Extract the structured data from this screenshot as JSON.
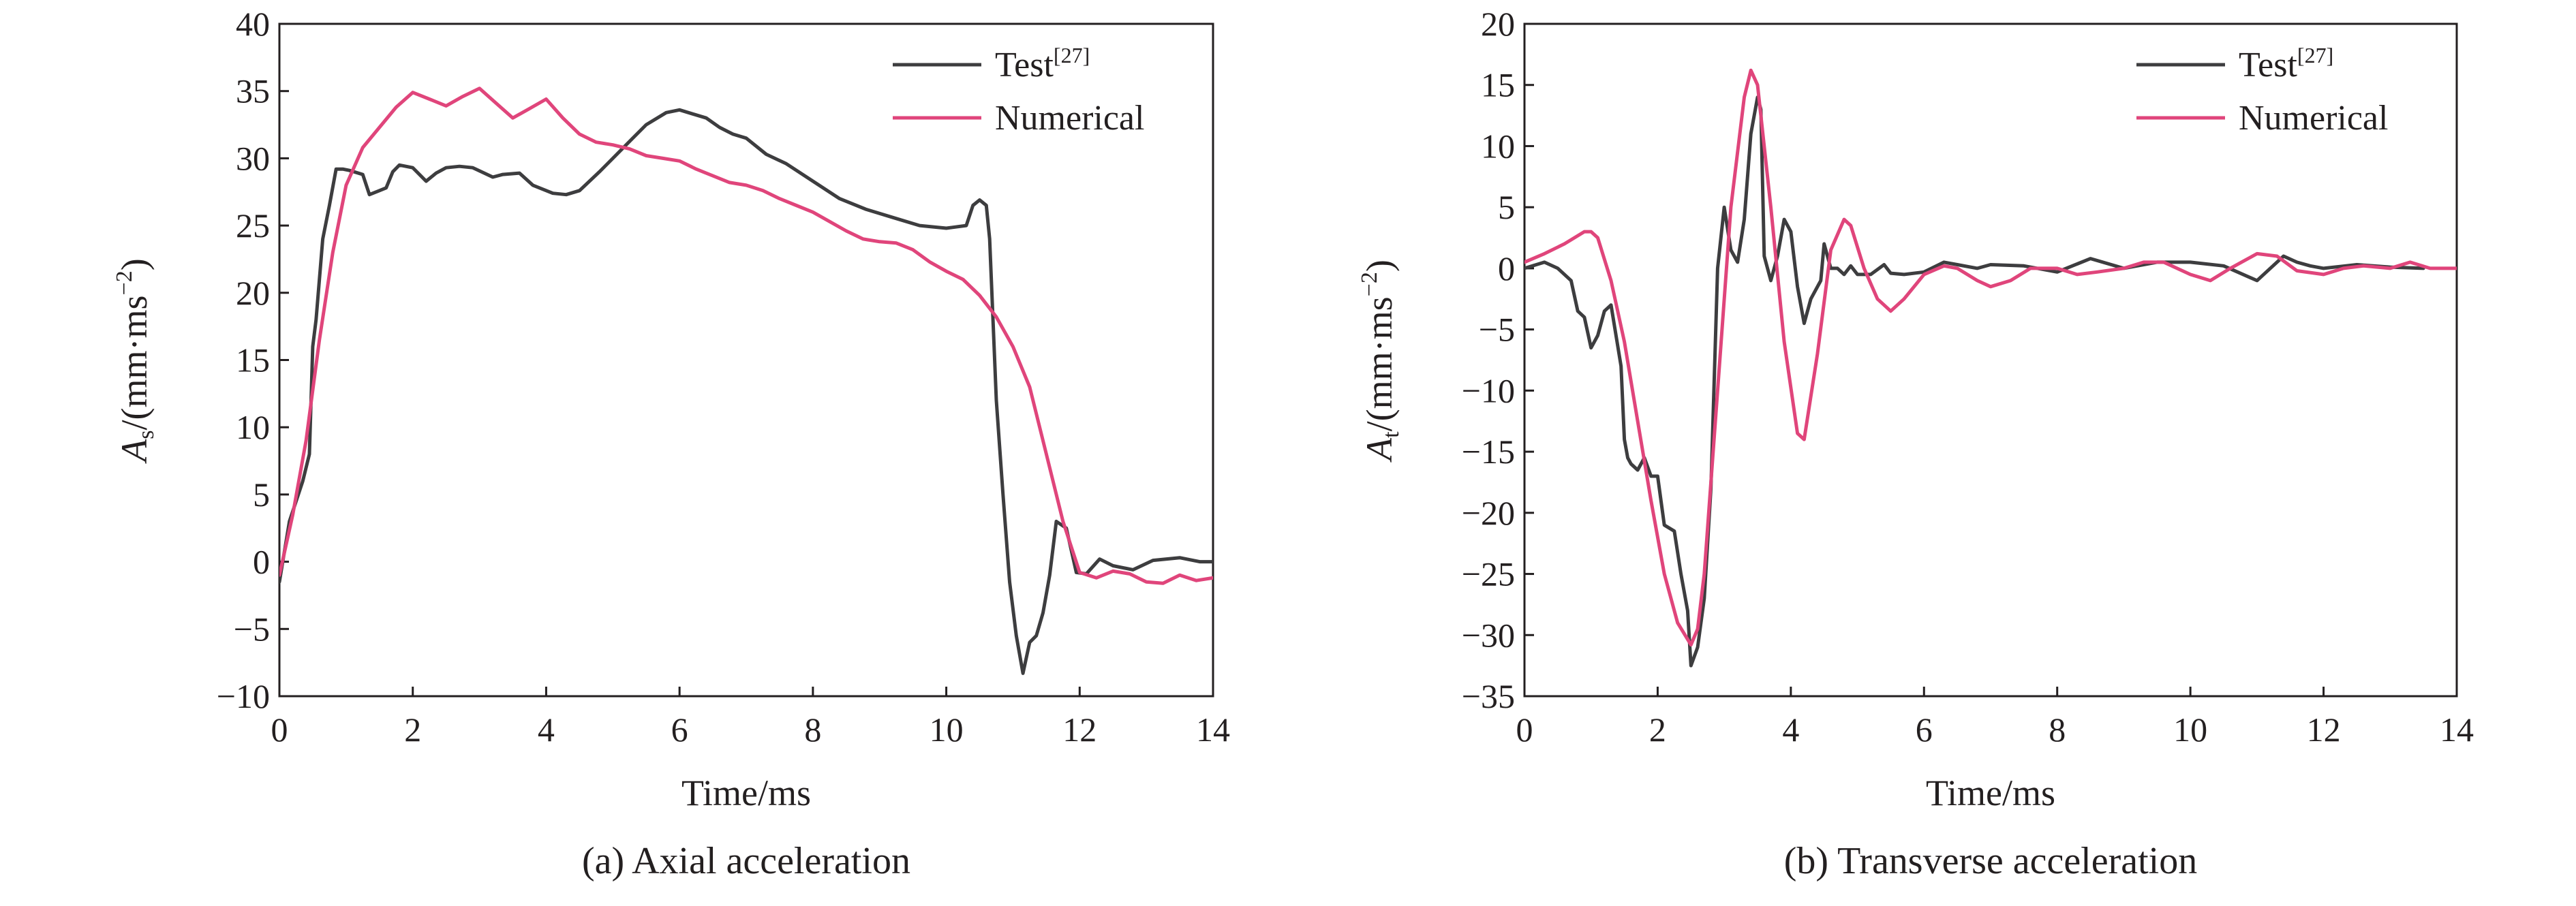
{
  "chart_data": [
    {
      "type": "line",
      "caption": "(a) Axial acceleration",
      "xlabel": "Time/ms",
      "ylabel_base": "A",
      "ylabel_sub": "s",
      "ylabel_rest": "/(mm·ms",
      "ylabel_sup": "−2",
      "ylabel_close": ")",
      "xlim": [
        0,
        14
      ],
      "ylim": [
        -10,
        40
      ],
      "xticks": [
        0,
        2,
        4,
        6,
        8,
        10,
        12,
        14
      ],
      "yticks": [
        -10,
        -5,
        0,
        5,
        10,
        15,
        20,
        25,
        30,
        35,
        40
      ],
      "xtick_labels": [
        "0",
        "2",
        "4",
        "6",
        "8",
        "10",
        "12",
        "14"
      ],
      "ytick_labels": [
        "−10",
        "−5",
        "0",
        "5",
        "10",
        "15",
        "20",
        "25",
        "30",
        "35",
        "40"
      ],
      "legend_position": "top-right",
      "series": [
        {
          "name": "Test",
          "name_sup": "[27]",
          "color": "#3d3d3f",
          "x": [
            0,
            0.15,
            0.35,
            0.45,
            0.5,
            0.55,
            0.65,
            0.75,
            0.85,
            0.95,
            1.05,
            1.25,
            1.35,
            1.5,
            1.6,
            1.7,
            1.8,
            2.0,
            2.2,
            2.35,
            2.5,
            2.7,
            2.9,
            3.2,
            3.35,
            3.6,
            3.8,
            4.1,
            4.3,
            4.5,
            4.8,
            5.0,
            5.3,
            5.5,
            5.8,
            6.0,
            6.2,
            6.4,
            6.6,
            6.8,
            7.0,
            7.3,
            7.6,
            8.0,
            8.4,
            8.8,
            9.2,
            9.6,
            10.0,
            10.3,
            10.4,
            10.5,
            10.6,
            10.65,
            10.75,
            10.85,
            10.95,
            11.05,
            11.15,
            11.25,
            11.35,
            11.45,
            11.55,
            11.65,
            11.8,
            11.95,
            12.1,
            12.3,
            12.5,
            12.8,
            13.1,
            13.5,
            13.8,
            14.0
          ],
          "values": [
            -1.5,
            3,
            6,
            8,
            16,
            18,
            24,
            26.5,
            29.2,
            29.2,
            29.1,
            28.8,
            27.3,
            27.6,
            27.8,
            29.0,
            29.5,
            29.3,
            28.3,
            28.9,
            29.3,
            29.4,
            29.3,
            28.6,
            28.8,
            28.9,
            28.0,
            27.4,
            27.3,
            27.6,
            29.0,
            30.0,
            31.5,
            32.5,
            33.4,
            33.6,
            33.3,
            33.0,
            32.3,
            31.8,
            31.5,
            30.3,
            29.6,
            28.3,
            27.0,
            26.2,
            25.6,
            25.0,
            24.8,
            25.0,
            26.5,
            26.9,
            26.5,
            24.0,
            12.0,
            5.0,
            -1.5,
            -5.5,
            -8.3,
            -6.0,
            -5.5,
            -3.8,
            -1.0,
            3.0,
            2.5,
            -0.8,
            -0.9,
            0.2,
            -0.3,
            -0.6,
            0.1,
            0.3,
            0.0,
            0.0
          ]
        },
        {
          "name": "Numerical",
          "color": "#e0457b",
          "x": [
            0,
            0.2,
            0.4,
            0.6,
            0.8,
            1.0,
            1.25,
            1.5,
            1.75,
            2.0,
            2.25,
            2.5,
            2.75,
            3.0,
            3.25,
            3.5,
            3.75,
            4.0,
            4.25,
            4.5,
            4.75,
            5.0,
            5.25,
            5.5,
            5.75,
            6.0,
            6.25,
            6.5,
            6.75,
            7.0,
            7.25,
            7.5,
            7.75,
            8.0,
            8.25,
            8.5,
            8.75,
            9.0,
            9.25,
            9.5,
            9.75,
            10.0,
            10.25,
            10.5,
            10.75,
            11.0,
            11.25,
            11.5,
            11.75,
            12.0,
            12.25,
            12.5,
            12.75,
            13.0,
            13.25,
            13.5,
            13.75,
            14.0
          ],
          "values": [
            -1.0,
            3.5,
            9.0,
            16.5,
            23.0,
            28.0,
            30.8,
            32.3,
            33.8,
            34.9,
            34.4,
            33.9,
            34.6,
            35.2,
            34.1,
            33.0,
            33.7,
            34.4,
            33.0,
            31.8,
            31.2,
            31.0,
            30.7,
            30.2,
            30.0,
            29.8,
            29.2,
            28.7,
            28.2,
            28.0,
            27.6,
            27.0,
            26.5,
            26.0,
            25.3,
            24.6,
            24.0,
            23.8,
            23.7,
            23.2,
            22.3,
            21.6,
            21.0,
            19.8,
            18.2,
            16.0,
            13.0,
            8.0,
            3.0,
            -0.8,
            -1.2,
            -0.7,
            -0.9,
            -1.5,
            -1.6,
            -1.0,
            -1.4,
            -1.2
          ]
        }
      ]
    },
    {
      "type": "line",
      "caption": "(b) Transverse acceleration",
      "xlabel": "Time/ms",
      "ylabel_base": "A",
      "ylabel_sub": "t",
      "ylabel_rest": "/(mm·ms",
      "ylabel_sup": "−2",
      "ylabel_close": ")",
      "xlim": [
        0,
        14
      ],
      "ylim": [
        -35,
        20
      ],
      "xticks": [
        0,
        2,
        4,
        6,
        8,
        10,
        12,
        14
      ],
      "yticks": [
        -35,
        -30,
        -25,
        -20,
        -15,
        -10,
        -5,
        0,
        5,
        10,
        15,
        20
      ],
      "xtick_labels": [
        "0",
        "2",
        "4",
        "6",
        "8",
        "10",
        "12",
        "14"
      ],
      "ytick_labels": [
        "−35",
        "−30",
        "−25",
        "−20",
        "−15",
        "−10",
        "−5",
        "0",
        "5",
        "10",
        "15",
        "20"
      ],
      "legend_position": "top-right",
      "series": [
        {
          "name": "Test",
          "name_sup": "[27]",
          "color": "#3d3d3f",
          "x": [
            0,
            0.3,
            0.5,
            0.7,
            0.8,
            0.9,
            1.0,
            1.1,
            1.2,
            1.3,
            1.45,
            1.5,
            1.55,
            1.6,
            1.7,
            1.8,
            1.9,
            2.0,
            2.1,
            2.25,
            2.35,
            2.45,
            2.5,
            2.6,
            2.7,
            2.8,
            2.9,
            3.0,
            3.1,
            3.2,
            3.3,
            3.4,
            3.5,
            3.55,
            3.6,
            3.7,
            3.8,
            3.9,
            4.0,
            4.1,
            4.2,
            4.3,
            4.45,
            4.5,
            4.6,
            4.7,
            4.8,
            4.9,
            5.0,
            5.2,
            5.4,
            5.5,
            5.7,
            6.0,
            6.3,
            6.5,
            6.8,
            7.0,
            7.5,
            8.0,
            8.5,
            9.0,
            9.5,
            10.0,
            10.5,
            11.0,
            11.2,
            11.4,
            11.6,
            11.8,
            12.0,
            12.5,
            13.0,
            13.5
          ],
          "values": [
            0.0,
            0.5,
            0,
            -1.0,
            -3.5,
            -4.0,
            -6.5,
            -5.5,
            -3.5,
            -3.0,
            -8.0,
            -14.0,
            -15.5,
            -16.0,
            -16.5,
            -15.5,
            -17.0,
            -17.0,
            -21.0,
            -21.5,
            -25.0,
            -28.0,
            -32.5,
            -31.0,
            -27.0,
            -18.0,
            0.0,
            5.0,
            1.5,
            0.5,
            4.0,
            11.0,
            14.0,
            13.0,
            1.0,
            -1.0,
            1.0,
            4.0,
            3.0,
            -1.5,
            -4.5,
            -2.5,
            -1.0,
            2.0,
            0.0,
            0.0,
            -0.5,
            0.2,
            -0.5,
            -0.5,
            0.3,
            -0.4,
            -0.5,
            -0.3,
            0.5,
            0.3,
            0.0,
            0.3,
            0.2,
            -0.3,
            0.8,
            0.0,
            0.5,
            0.5,
            0.2,
            -1.0,
            0.0,
            1.0,
            0.5,
            0.2,
            0.0,
            0.3,
            0.1,
            0.0
          ]
        },
        {
          "name": "Numerical",
          "color": "#e0457b",
          "x": [
            0,
            0.3,
            0.6,
            0.9,
            1.0,
            1.1,
            1.3,
            1.5,
            1.7,
            1.9,
            2.1,
            2.3,
            2.5,
            2.6,
            2.7,
            2.9,
            3.1,
            3.3,
            3.4,
            3.5,
            3.7,
            3.9,
            4.1,
            4.2,
            4.4,
            4.6,
            4.8,
            4.9,
            5.1,
            5.3,
            5.5,
            5.7,
            6.0,
            6.3,
            6.5,
            6.8,
            7.0,
            7.3,
            7.6,
            8.0,
            8.3,
            8.6,
            9.0,
            9.3,
            9.6,
            10.0,
            10.3,
            10.6,
            11.0,
            11.3,
            11.6,
            12.0,
            12.3,
            12.6,
            13.0,
            13.3,
            13.6,
            14.0
          ],
          "values": [
            0.5,
            1.2,
            2.0,
            3.0,
            3.0,
            2.5,
            -1.0,
            -6.0,
            -12.5,
            -19.0,
            -25.0,
            -29.0,
            -30.8,
            -29.5,
            -25.0,
            -10.0,
            5.0,
            14.0,
            16.2,
            15.0,
            5.0,
            -6.0,
            -13.5,
            -14.0,
            -7.0,
            1.5,
            4.0,
            3.5,
            0.0,
            -2.5,
            -3.5,
            -2.5,
            -0.5,
            0.2,
            0.0,
            -1.0,
            -1.5,
            -1.0,
            0.0,
            0.0,
            -0.5,
            -0.3,
            0.0,
            0.5,
            0.5,
            -0.5,
            -1.0,
            0.0,
            1.2,
            1.0,
            -0.2,
            -0.5,
            0.0,
            0.2,
            0.0,
            0.5,
            0.0,
            0.0
          ]
        }
      ]
    }
  ]
}
